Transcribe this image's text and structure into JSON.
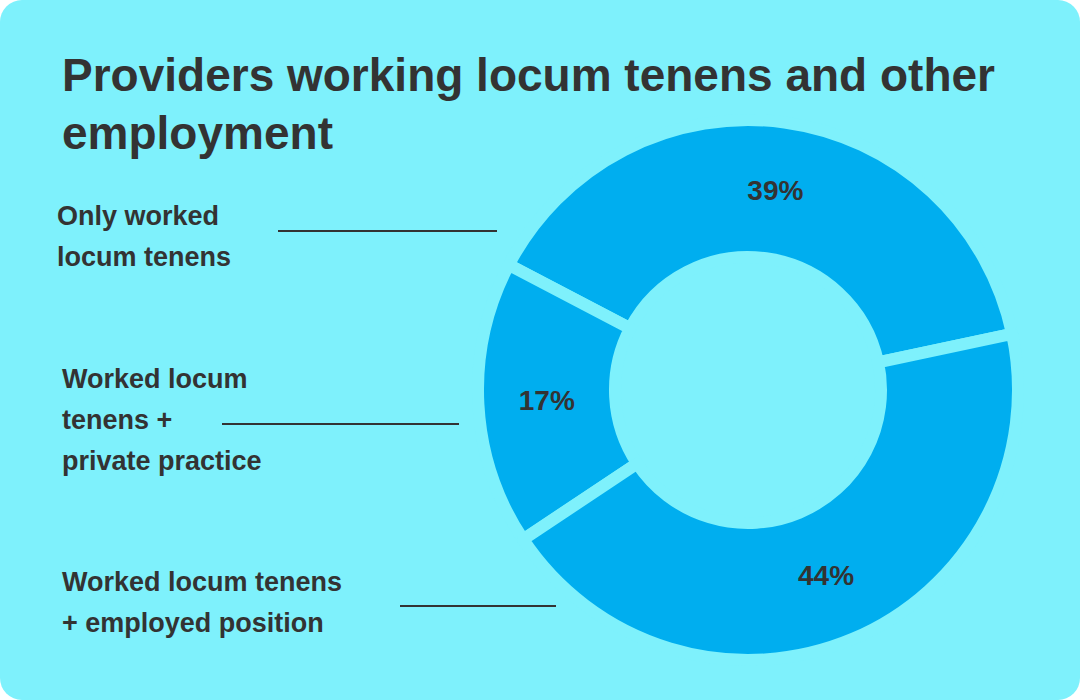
{
  "chart_data": {
    "type": "donut",
    "title": "Providers working locum tenens and other employment",
    "categories": [
      "Only worked locum tenens",
      "Worked locum tenens + private practice",
      "Worked locum tenens + employed position"
    ],
    "values": [
      39,
      17,
      44
    ],
    "value_labels": [
      "39%",
      "17%",
      "44%"
    ],
    "color": "#00aeef",
    "data_labels": true
  }
}
